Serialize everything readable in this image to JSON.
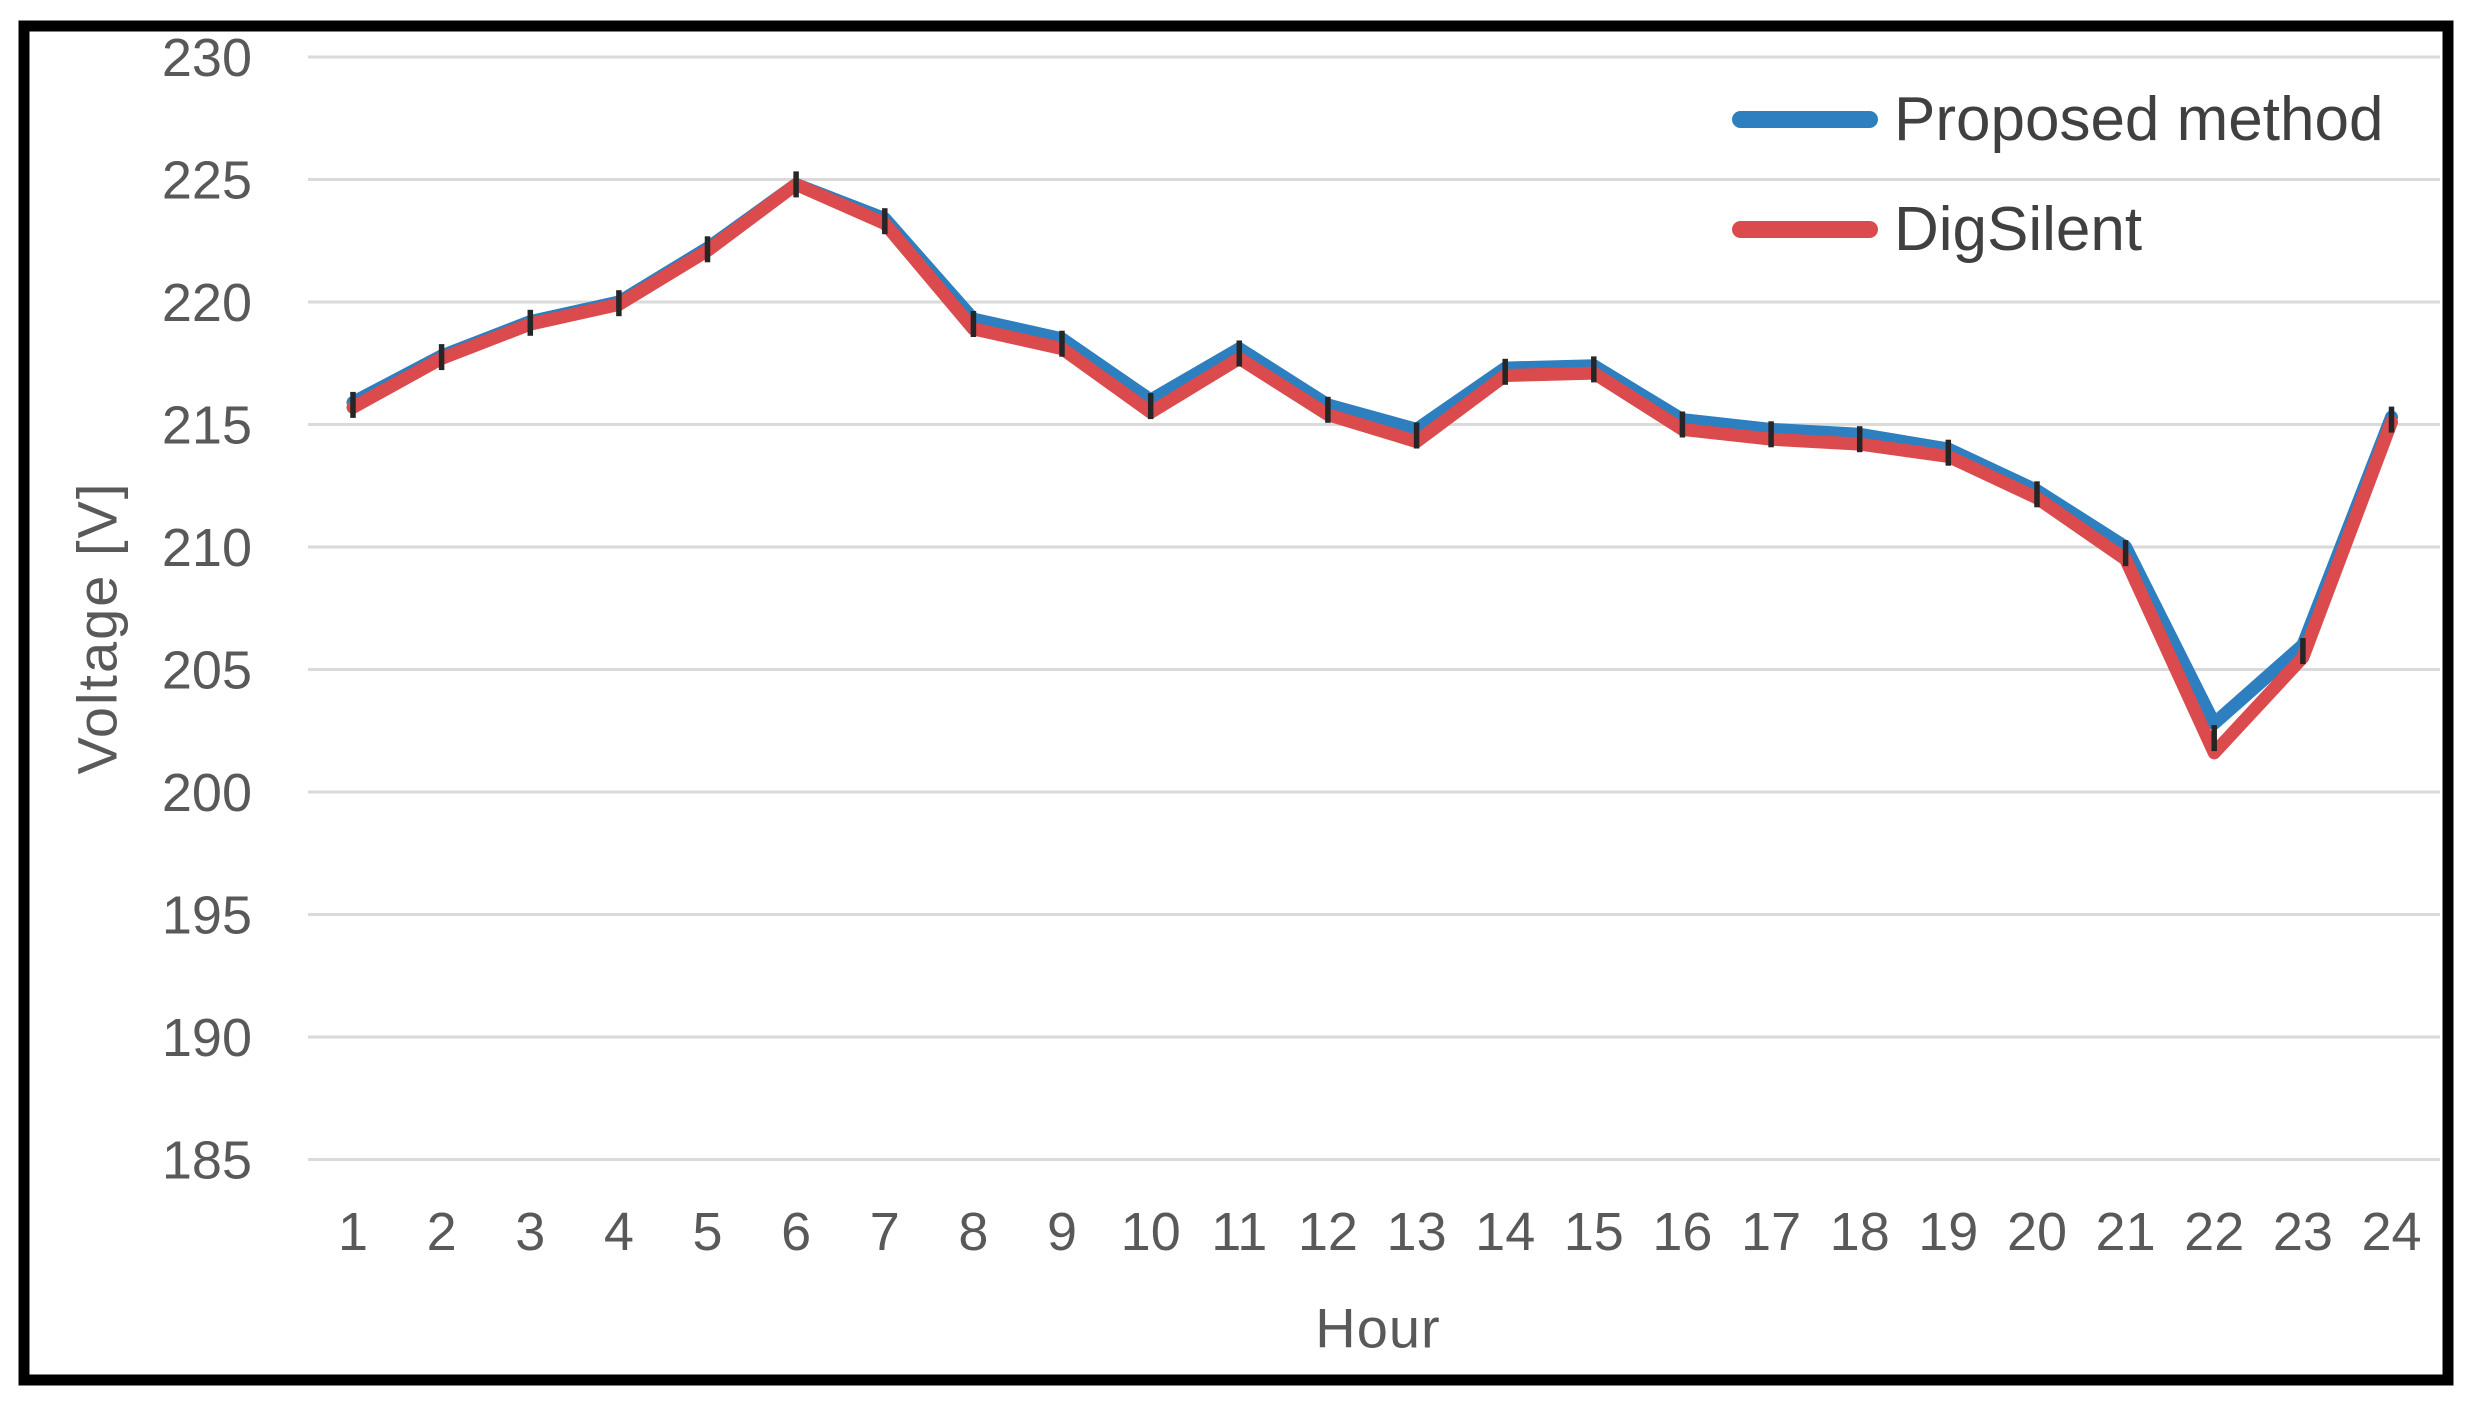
{
  "figure": {
    "background": "#ffffff",
    "border_color": "#000000",
    "text_color": "#595959",
    "legend_text_color": "#404040"
  },
  "chart_data": {
    "type": "line",
    "title": "",
    "xlabel": "Hour",
    "ylabel": "Voltage [V]",
    "x": [
      1,
      2,
      3,
      4,
      5,
      6,
      7,
      8,
      9,
      10,
      11,
      12,
      13,
      14,
      15,
      16,
      17,
      18,
      19,
      20,
      21,
      22,
      23,
      24
    ],
    "series": [
      {
        "name": "Proposed method",
        "color": "#2E7FBF",
        "values": [
          215.9,
          217.8,
          219.2,
          220.0,
          222.2,
          224.8,
          223.4,
          219.3,
          218.5,
          216.0,
          218.1,
          215.8,
          214.8,
          217.3,
          217.4,
          215.2,
          214.8,
          214.6,
          214.0,
          212.3,
          210.0,
          202.8,
          206.0,
          215.3
        ]
      },
      {
        "name": "DigSilent",
        "color": "#DB4A4C",
        "values": [
          215.7,
          217.7,
          219.1,
          219.9,
          222.1,
          224.8,
          223.2,
          218.9,
          218.1,
          215.5,
          217.7,
          215.4,
          214.3,
          217.0,
          217.1,
          214.8,
          214.4,
          214.2,
          213.7,
          212.0,
          209.5,
          201.6,
          205.5,
          215.1
        ]
      }
    ],
    "ylim": [
      185,
      230
    ],
    "y_ticks": [
      230,
      225,
      220,
      215,
      210,
      205,
      200,
      195,
      190,
      185
    ],
    "grid": "horizontal",
    "gridline_color": "#DADADA",
    "legend_position": "top-right",
    "marker": {
      "shape": "vertical-dash",
      "color": "#262626"
    }
  }
}
